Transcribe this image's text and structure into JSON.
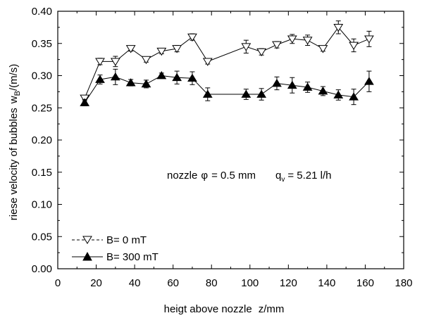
{
  "chart_data": {
    "type": "line",
    "xlabel_main": "heigt above nozzle",
    "xlabel_var": "z/mm",
    "ylabel_main": "riese velocity of bubbles",
    "ylabel_sym": "w",
    "ylabel_sub": "B",
    "ylabel_unit": "/(m/s)",
    "xlim": [
      0,
      180
    ],
    "ylim": [
      0.0,
      0.4
    ],
    "xticks": [
      "0",
      "20",
      "40",
      "60",
      "80",
      "100",
      "120",
      "140",
      "160",
      "180"
    ],
    "yticks": [
      "0.00",
      "0.05",
      "0.10",
      "0.15",
      "0.20",
      "0.25",
      "0.30",
      "0.35",
      "0.40"
    ],
    "grid": false,
    "legend_position": "bottom-left",
    "annotation": {
      "prefix": "nozzle",
      "phi": "φ",
      "eq": "= 0.5 mm",
      "q": "q",
      "q_sub": "v",
      "q_val": "= 5.21 l/h"
    },
    "series": [
      {
        "name": "B= 0 mT",
        "marker": "open-down-triangle",
        "line": "solid",
        "x": [
          14,
          22,
          30,
          38,
          46,
          54,
          62,
          70,
          78,
          98,
          106,
          114,
          122,
          130,
          138,
          146,
          154,
          162
        ],
        "y": [
          0.265,
          0.322,
          0.322,
          0.342,
          0.325,
          0.338,
          0.342,
          0.36,
          0.322,
          0.345,
          0.337,
          0.348,
          0.357,
          0.355,
          0.342,
          0.375,
          0.347,
          0.357
        ],
        "err": [
          0.004,
          0.005,
          0.008,
          0.004,
          0.004,
          0.004,
          0.005,
          0.005,
          0.004,
          0.01,
          0.005,
          0.005,
          0.007,
          0.008,
          0.004,
          0.01,
          0.01,
          0.012
        ]
      },
      {
        "name": "B= 300 mT",
        "marker": "filled-up-triangle",
        "line": "solid",
        "x": [
          14,
          22,
          30,
          38,
          46,
          54,
          62,
          70,
          78,
          98,
          106,
          114,
          122,
          130,
          138,
          146,
          154,
          162
        ],
        "y": [
          0.258,
          0.294,
          0.298,
          0.289,
          0.287,
          0.3,
          0.297,
          0.296,
          0.271,
          0.271,
          0.271,
          0.288,
          0.285,
          0.282,
          0.276,
          0.27,
          0.267,
          0.291
        ],
        "err": [
          0.005,
          0.007,
          0.012,
          0.005,
          0.006,
          0.004,
          0.01,
          0.01,
          0.01,
          0.008,
          0.009,
          0.01,
          0.012,
          0.008,
          0.007,
          0.008,
          0.012,
          0.016
        ]
      }
    ]
  }
}
